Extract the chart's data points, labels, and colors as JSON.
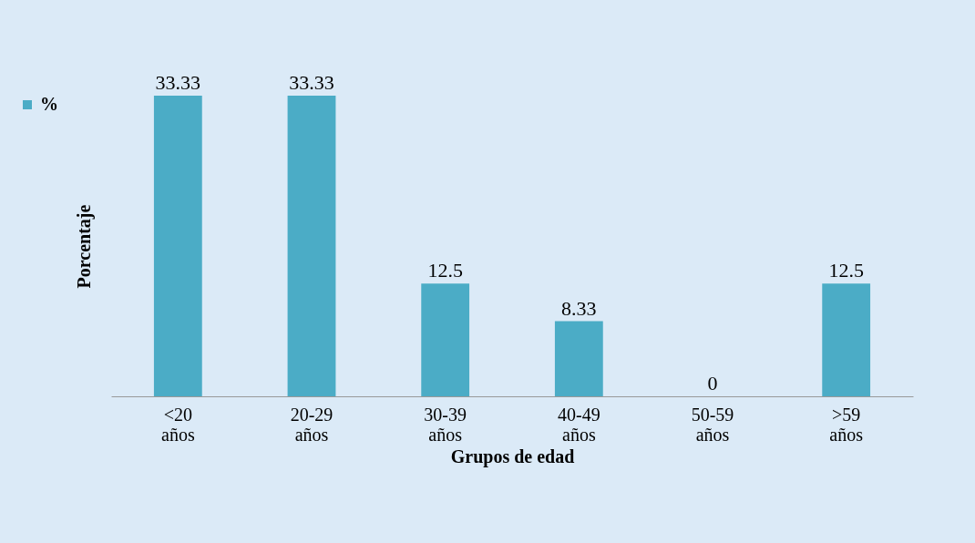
{
  "chart_data": {
    "type": "bar",
    "xlabel": "Grupos de edad",
    "ylabel": "Porcentaje",
    "categories": [
      "<20 años",
      "20-29 años",
      "30-39 años",
      "40-49 años",
      "50-59 años",
      ">59 años"
    ],
    "series": [
      {
        "name": "%",
        "color": "#4bacc6",
        "values": [
          33.33,
          33.33,
          12.5,
          8.33,
          0,
          12.5
        ]
      }
    ],
    "data_labels": true,
    "legend": "left",
    "tick_labels": "x",
    "grid": false
  }
}
